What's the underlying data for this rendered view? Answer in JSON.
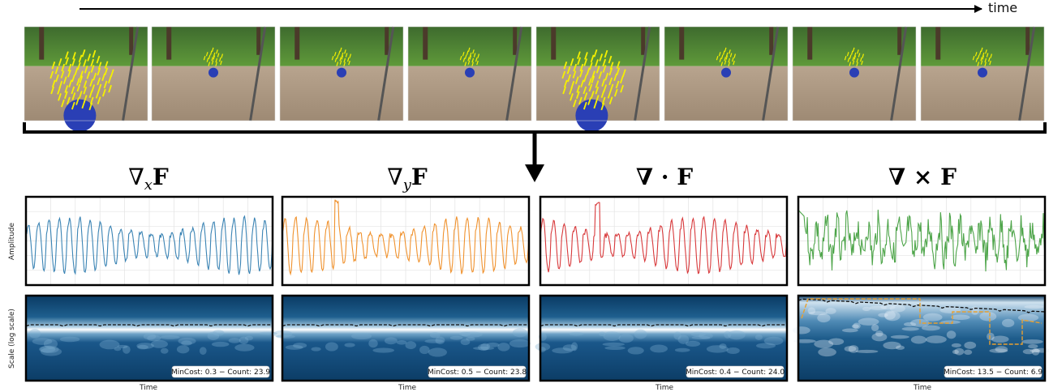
{
  "time_axis_label": "time",
  "frames_count": 8,
  "operators": [
    {
      "key": "grad-x",
      "title_op": "∇",
      "title_sub": "x",
      "title_f": "F",
      "bold_op": false,
      "color": "#3b84b4",
      "mincost": "MinCost: 0.3 − Count: 23.9"
    },
    {
      "key": "grad-y",
      "title_op": "∇",
      "title_sub": "y",
      "title_f": "F",
      "bold_op": false,
      "color": "#f0922e",
      "mincost": "MinCost: 0.5 − Count: 23.8"
    },
    {
      "key": "div",
      "title_op": "∇ · ",
      "title_sub": "",
      "title_f": "F",
      "bold_op": true,
      "color": "#d8393b",
      "mincost": "MinCost: 0.4 − Count: 24.0"
    },
    {
      "key": "curl",
      "title_op": "∇ × ",
      "title_sub": "",
      "title_f": "F",
      "bold_op": true,
      "color": "#4ea54a",
      "mincost": "MinCost: 13.5 − Count: 6.9"
    }
  ],
  "y_label_amplitude": "Amplitude",
  "y_label_scale": "Scale (log scale)",
  "x_label_time": "Time",
  "colors": {
    "wavelet_dark": "#0c3d66",
    "wavelet_light": "#ffffff",
    "ridge_black": "#111111",
    "ridge_orange": "#e8a030"
  }
}
